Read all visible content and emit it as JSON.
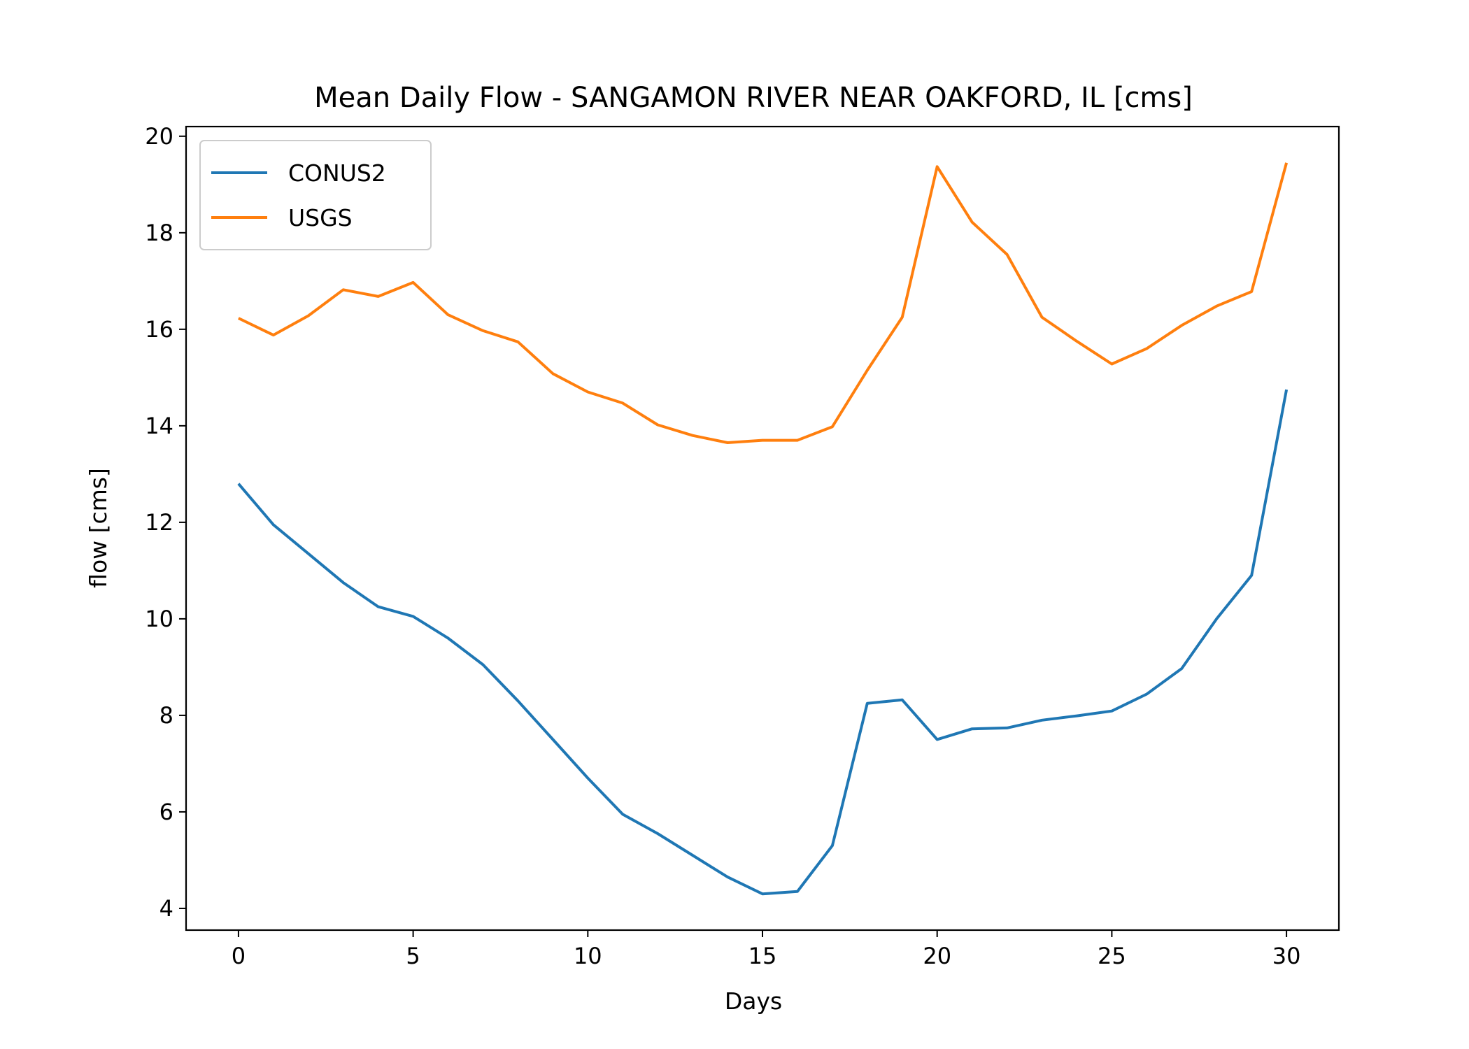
{
  "chart_data": {
    "type": "line",
    "title": "Mean Daily Flow - SANGAMON RIVER NEAR OAKFORD, IL [cms]",
    "xlabel": "Days",
    "ylabel": "flow [cms]",
    "xlim": [
      -1.5,
      31.5
    ],
    "ylim": [
      3.55,
      20.2
    ],
    "xticks": [
      0,
      5,
      10,
      15,
      20,
      25,
      30
    ],
    "yticks": [
      4,
      6,
      8,
      10,
      12,
      14,
      16,
      18,
      20
    ],
    "grid": false,
    "legend": "top-left",
    "x": [
      0,
      1,
      2,
      3,
      4,
      5,
      6,
      7,
      8,
      9,
      10,
      11,
      12,
      13,
      14,
      15,
      16,
      17,
      18,
      19,
      20,
      21,
      22,
      23,
      24,
      25,
      26,
      27,
      28,
      29,
      30
    ],
    "series": [
      {
        "name": "CONUS2",
        "color": "#1f77b4",
        "values": [
          12.8,
          11.95,
          11.35,
          10.75,
          10.25,
          10.05,
          9.6,
          9.05,
          8.3,
          7.5,
          6.7,
          5.95,
          5.55,
          5.1,
          4.65,
          4.3,
          4.35,
          5.3,
          8.25,
          8.32,
          7.5,
          7.72,
          7.74,
          7.9,
          7.99,
          8.09,
          8.44,
          8.97,
          10.0,
          10.9,
          14.75
        ]
      },
      {
        "name": "USGS",
        "color": "#ff7f0e",
        "values": [
          16.23,
          15.88,
          16.28,
          16.82,
          16.68,
          16.97,
          16.3,
          15.97,
          15.74,
          15.08,
          14.7,
          14.47,
          14.02,
          13.8,
          13.65,
          13.7,
          13.7,
          13.98,
          15.15,
          16.25,
          19.37,
          18.22,
          17.55,
          16.25,
          15.75,
          15.28,
          15.6,
          16.08,
          16.48,
          16.78,
          19.45
        ]
      }
    ]
  }
}
